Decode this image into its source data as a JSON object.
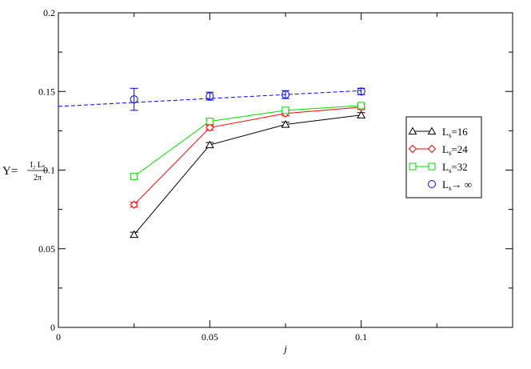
{
  "chart_data": {
    "type": "line",
    "title": "",
    "xlabel": "j",
    "ylabel": {
      "prefix": "Υ=",
      "numerator": "I₂ Lₛ",
      "denominator": "2π"
    },
    "xlim": [
      0,
      0.15
    ],
    "ylim": [
      0,
      0.2
    ],
    "x_ticks": [
      {
        "value": 0,
        "label": "0"
      },
      {
        "value": 0.05,
        "label": "0.05"
      },
      {
        "value": 0.1,
        "label": "0.1"
      }
    ],
    "y_ticks": [
      {
        "value": 0,
        "label": "0"
      },
      {
        "value": 0.05,
        "label": "0.05"
      },
      {
        "value": 0.1,
        "label": "0.1"
      },
      {
        "value": 0.15,
        "label": "0.15"
      },
      {
        "value": 0.2,
        "label": "0.2"
      }
    ],
    "legend_position": "right",
    "grid": false,
    "series": [
      {
        "name": "L_s=16",
        "legend_main": "L",
        "legend_sub": "s",
        "legend_rest": "=16",
        "color": "#000000",
        "marker": "triangle",
        "line": "solid",
        "x": [
          0.025,
          0.05,
          0.075,
          0.1
        ],
        "y": [
          0.059,
          0.116,
          0.129,
          0.135
        ],
        "err": [
          0.0015,
          0.0015,
          0.0015,
          0.0015
        ]
      },
      {
        "name": "L_s=24",
        "legend_main": "L",
        "legend_sub": "s",
        "legend_rest": "=24",
        "color": "#ff0000",
        "marker": "diamond",
        "line": "solid",
        "x": [
          0.025,
          0.05,
          0.075,
          0.1
        ],
        "y": [
          0.078,
          0.127,
          0.136,
          0.14
        ],
        "err": [
          0.0015,
          0.0015,
          0.0015,
          0.0015
        ]
      },
      {
        "name": "L_s=32",
        "legend_main": "L",
        "legend_sub": "s",
        "legend_rest": "=32",
        "color": "#00dd00",
        "marker": "square",
        "line": "solid",
        "x": [
          0.025,
          0.05,
          0.075,
          0.1
        ],
        "y": [
          0.096,
          0.131,
          0.138,
          0.141
        ],
        "err": [
          0.0015,
          0.0015,
          0.0015,
          0.0015
        ]
      },
      {
        "name": "L_s→∞",
        "legend_main": "L",
        "legend_sub": "s",
        "legend_rest": "→ ∞",
        "color": "#0000ff",
        "marker": "circle",
        "line": "none",
        "x": [
          0.025,
          0.05,
          0.075,
          0.1
        ],
        "y": [
          0.145,
          0.147,
          0.148,
          0.15
        ],
        "err": [
          0.007,
          0.0025,
          0.0025,
          0.002
        ]
      }
    ],
    "fit_line": {
      "color": "#0000ff",
      "style": "dashed",
      "x": [
        0,
        0.1
      ],
      "y": [
        0.1405,
        0.1505
      ]
    }
  }
}
